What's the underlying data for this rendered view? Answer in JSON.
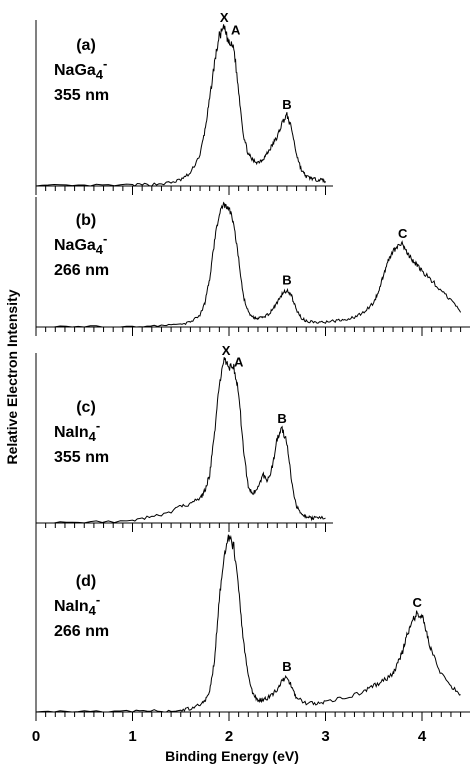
{
  "chart_data": {
    "type": "line",
    "xlabel": "Binding Energy (eV)",
    "ylabel": "Relative Electron Intensity",
    "xlim": [
      0,
      4.4
    ],
    "x_ticks": [
      "0",
      "1",
      "2",
      "3",
      "4"
    ],
    "minor_tick_step": 0.1,
    "panels": [
      {
        "id": "a",
        "label": "(a)",
        "species_base": "NaGa",
        "species_sub": "4",
        "species_sup": "-",
        "wavelength": "355 nm",
        "x": [
          0.0,
          0.5,
          1.0,
          1.2,
          1.4,
          1.5,
          1.6,
          1.7,
          1.75,
          1.8,
          1.85,
          1.9,
          1.95,
          2.0,
          2.05,
          2.1,
          2.15,
          2.2,
          2.25,
          2.3,
          2.35,
          2.4,
          2.45,
          2.5,
          2.55,
          2.6,
          2.65,
          2.7,
          2.75,
          2.8,
          2.85,
          2.9,
          2.95,
          3.0
        ],
        "y": [
          0.0,
          0.0,
          0.005,
          0.01,
          0.02,
          0.04,
          0.08,
          0.2,
          0.35,
          0.55,
          0.78,
          0.95,
          1.0,
          0.9,
          0.88,
          0.6,
          0.32,
          0.2,
          0.16,
          0.15,
          0.17,
          0.21,
          0.26,
          0.31,
          0.4,
          0.45,
          0.36,
          0.2,
          0.1,
          0.06,
          0.05,
          0.04,
          0.04,
          0.03
        ],
        "peaks": [
          {
            "text": "X",
            "x": 1.95,
            "y": 1.0
          },
          {
            "text": "A",
            "x": 2.07,
            "y": 0.92
          },
          {
            "text": "B",
            "x": 2.6,
            "y": 0.45
          }
        ]
      },
      {
        "id": "b",
        "label": "(b)",
        "species_base": "NaGa",
        "species_sub": "4",
        "species_sup": "-",
        "wavelength": "266 nm",
        "x": [
          0.0,
          0.5,
          1.0,
          1.3,
          1.5,
          1.6,
          1.7,
          1.75,
          1.8,
          1.85,
          1.9,
          1.95,
          2.0,
          2.05,
          2.1,
          2.15,
          2.2,
          2.25,
          2.3,
          2.35,
          2.4,
          2.45,
          2.5,
          2.55,
          2.6,
          2.65,
          2.7,
          2.75,
          2.8,
          2.9,
          3.0,
          3.1,
          3.2,
          3.3,
          3.4,
          3.5,
          3.55,
          3.6,
          3.65,
          3.7,
          3.75,
          3.8,
          3.85,
          3.9,
          3.95,
          4.0,
          4.1,
          4.2,
          4.3,
          4.4
        ],
        "y": [
          0.0,
          0.0,
          0.005,
          0.01,
          0.02,
          0.04,
          0.1,
          0.2,
          0.4,
          0.7,
          0.93,
          1.0,
          0.97,
          0.85,
          0.55,
          0.25,
          0.12,
          0.08,
          0.07,
          0.08,
          0.1,
          0.14,
          0.2,
          0.27,
          0.3,
          0.25,
          0.14,
          0.07,
          0.05,
          0.04,
          0.04,
          0.05,
          0.06,
          0.08,
          0.12,
          0.2,
          0.3,
          0.42,
          0.55,
          0.62,
          0.66,
          0.68,
          0.6,
          0.55,
          0.5,
          0.46,
          0.38,
          0.3,
          0.22,
          0.12
        ],
        "peaks": [
          {
            "text": "B",
            "x": 2.6,
            "y": 0.3
          },
          {
            "text": "C",
            "x": 3.8,
            "y": 0.68
          }
        ]
      },
      {
        "id": "c",
        "label": "(c)",
        "species_base": "NaIn",
        "species_sub": "4",
        "species_sup": "-",
        "wavelength": "355 nm",
        "x": [
          0.0,
          0.5,
          1.0,
          1.2,
          1.4,
          1.5,
          1.6,
          1.7,
          1.75,
          1.8,
          1.85,
          1.9,
          1.95,
          2.0,
          2.05,
          2.1,
          2.15,
          2.2,
          2.25,
          2.3,
          2.35,
          2.4,
          2.45,
          2.5,
          2.55,
          2.6,
          2.65,
          2.7,
          2.75,
          2.8,
          2.85,
          2.9,
          3.0
        ],
        "y": [
          0.0,
          0.0,
          0.02,
          0.04,
          0.07,
          0.1,
          0.12,
          0.15,
          0.2,
          0.3,
          0.55,
          0.85,
          1.0,
          0.95,
          0.97,
          0.8,
          0.45,
          0.22,
          0.18,
          0.22,
          0.3,
          0.26,
          0.35,
          0.52,
          0.58,
          0.5,
          0.25,
          0.1,
          0.06,
          0.04,
          0.03,
          0.03,
          0.03
        ],
        "peaks": [
          {
            "text": "X",
            "x": 1.97,
            "y": 1.0
          },
          {
            "text": "A",
            "x": 2.1,
            "y": 0.93
          },
          {
            "text": "B",
            "x": 2.55,
            "y": 0.58
          }
        ]
      },
      {
        "id": "d",
        "label": "(d)",
        "species_base": "NaIn",
        "species_sub": "4",
        "species_sup": "-",
        "wavelength": "266 nm",
        "x": [
          0.0,
          0.5,
          1.0,
          1.3,
          1.5,
          1.6,
          1.7,
          1.75,
          1.8,
          1.85,
          1.9,
          1.95,
          2.0,
          2.05,
          2.1,
          2.15,
          2.2,
          2.25,
          2.3,
          2.35,
          2.4,
          2.45,
          2.5,
          2.55,
          2.6,
          2.65,
          2.7,
          2.8,
          2.9,
          3.0,
          3.2,
          3.4,
          3.5,
          3.6,
          3.7,
          3.75,
          3.8,
          3.85,
          3.9,
          3.95,
          4.0,
          4.05,
          4.1,
          4.2,
          4.3,
          4.4
        ],
        "y": [
          0.0,
          0.0,
          0.0,
          0.005,
          0.01,
          0.02,
          0.04,
          0.06,
          0.12,
          0.3,
          0.65,
          0.92,
          1.0,
          0.95,
          0.7,
          0.4,
          0.2,
          0.1,
          0.07,
          0.07,
          0.08,
          0.1,
          0.13,
          0.18,
          0.2,
          0.15,
          0.08,
          0.05,
          0.05,
          0.06,
          0.08,
          0.12,
          0.15,
          0.18,
          0.22,
          0.28,
          0.35,
          0.45,
          0.52,
          0.57,
          0.55,
          0.45,
          0.35,
          0.22,
          0.15,
          0.1
        ],
        "peaks": [
          {
            "text": "B",
            "x": 2.6,
            "y": 0.2
          },
          {
            "text": "C",
            "x": 3.95,
            "y": 0.57
          }
        ]
      }
    ]
  }
}
